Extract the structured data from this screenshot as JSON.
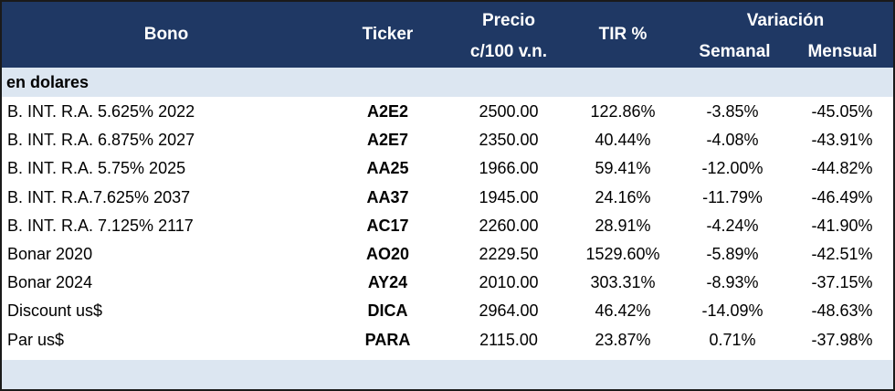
{
  "header": {
    "bono": "Bono",
    "ticker": "Ticker",
    "precio_line1": "Precio",
    "precio_line2": "c/100 v.n.",
    "tir": "TIR %",
    "variacion": "Variación",
    "semanal": "Semanal",
    "mensual": "Mensual"
  },
  "section_label": "en dolares",
  "rows": [
    {
      "bono": "B. INT. R.A. 5.625% 2022",
      "ticker": "A2E2",
      "precio": "2500.00",
      "tir": "122.86%",
      "semanal": "-3.85%",
      "mensual": "-45.05%"
    },
    {
      "bono": "B. INT. R.A. 6.875% 2027",
      "ticker": "A2E7",
      "precio": "2350.00",
      "tir": "40.44%",
      "semanal": "-4.08%",
      "mensual": "-43.91%"
    },
    {
      "bono": "B. INT. R.A. 5.75% 2025",
      "ticker": "AA25",
      "precio": "1966.00",
      "tir": "59.41%",
      "semanal": "-12.00%",
      "mensual": "-44.82%"
    },
    {
      "bono": "B. INT. R.A.7.625% 2037",
      "ticker": "AA37",
      "precio": "1945.00",
      "tir": "24.16%",
      "semanal": "-11.79%",
      "mensual": "-46.49%"
    },
    {
      "bono": "B. INT. R.A. 7.125% 2117",
      "ticker": "AC17",
      "precio": "2260.00",
      "tir": "28.91%",
      "semanal": "-4.24%",
      "mensual": "-41.90%"
    },
    {
      "bono": "Bonar 2020",
      "ticker": "AO20",
      "precio": "2229.50",
      "tir": "1529.60%",
      "semanal": "-5.89%",
      "mensual": "-42.51%"
    },
    {
      "bono": "Bonar 2024",
      "ticker": "AY24",
      "precio": "2010.00",
      "tir": "303.31%",
      "semanal": "-8.93%",
      "mensual": "-37.15%"
    },
    {
      "bono": "Discount us$",
      "ticker": "DICA",
      "precio": "2964.00",
      "tir": "46.42%",
      "semanal": "-14.09%",
      "mensual": "-48.63%"
    },
    {
      "bono": "Par us$",
      "ticker": "PARA",
      "precio": "2115.00",
      "tir": "23.87%",
      "semanal": "0.71%",
      "mensual": "-37.98%"
    }
  ],
  "colors": {
    "header_bg": "#1f3864",
    "section_bg": "#dce6f1"
  }
}
